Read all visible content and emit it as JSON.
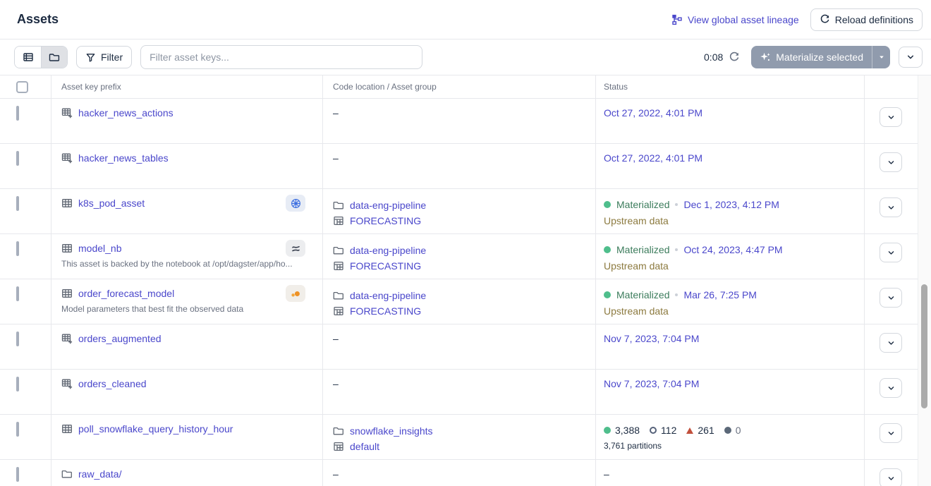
{
  "page": {
    "title": "Assets"
  },
  "header": {
    "lineage_link": "View global asset lineage",
    "reload_button": "Reload definitions"
  },
  "toolbar": {
    "filter_button": "Filter",
    "search_placeholder": "Filter asset keys...",
    "timer": "0:08",
    "materialize_button": "Materialize selected"
  },
  "table": {
    "columns": [
      "Asset key prefix",
      "Code location / Asset group",
      "Status"
    ],
    "empty_cell": "–",
    "rows": [
      {
        "key": "hacker_news_actions",
        "icon": "table-plus",
        "badge": null,
        "description": null,
        "location": null,
        "status": {
          "type": "date",
          "date": "Oct 27, 2022, 4:01 PM"
        }
      },
      {
        "key": "hacker_news_tables",
        "icon": "table-plus",
        "badge": null,
        "description": null,
        "location": null,
        "status": {
          "type": "date",
          "date": "Oct 27, 2022, 4:01 PM"
        }
      },
      {
        "key": "k8s_pod_asset",
        "icon": "table",
        "badge": "kubernetes",
        "description": null,
        "location": {
          "code_location": "data-eng-pipeline",
          "group": "FORECASTING"
        },
        "status": {
          "type": "materialized",
          "label": "Materialized",
          "date": "Dec 1, 2023, 4:12 PM",
          "note": "Upstream data"
        }
      },
      {
        "key": "model_nb",
        "icon": "table",
        "badge": "notebook",
        "description": "This asset is backed by the notebook at /opt/dagster/app/ho...",
        "location": {
          "code_location": "data-eng-pipeline",
          "group": "FORECASTING"
        },
        "status": {
          "type": "materialized",
          "label": "Materialized",
          "date": "Oct 24, 2023, 4:47 PM",
          "note": "Upstream data"
        }
      },
      {
        "key": "order_forecast_model",
        "icon": "table",
        "badge": "noteable",
        "description": "Model parameters that best fit the observed data",
        "location": {
          "code_location": "data-eng-pipeline",
          "group": "FORECASTING"
        },
        "status": {
          "type": "materialized",
          "label": "Materialized",
          "date": "Mar 26, 7:25 PM",
          "note": "Upstream data"
        }
      },
      {
        "key": "orders_augmented",
        "icon": "table-plus",
        "badge": null,
        "description": null,
        "location": null,
        "status": {
          "type": "date",
          "date": "Nov 7, 2023, 7:04 PM"
        }
      },
      {
        "key": "orders_cleaned",
        "icon": "table-plus",
        "badge": null,
        "description": null,
        "location": null,
        "status": {
          "type": "date",
          "date": "Nov 7, 2023, 7:04 PM"
        }
      },
      {
        "key": "poll_snowflake_query_history_hour",
        "icon": "table",
        "badge": null,
        "description": null,
        "location": {
          "code_location": "snowflake_insights",
          "group": "default"
        },
        "status": {
          "type": "partitions",
          "counts": [
            {
              "marker": "materialized",
              "value": "3,388",
              "muted": false
            },
            {
              "marker": "missing",
              "value": "112",
              "muted": false
            },
            {
              "marker": "failed",
              "value": "261",
              "muted": false
            },
            {
              "marker": "materializing",
              "value": "0",
              "muted": true
            }
          ],
          "total": "3,761 partitions"
        }
      },
      {
        "key": "raw_data/",
        "icon": "folder",
        "badge": null,
        "description": null,
        "location": null,
        "status": {
          "type": "none"
        }
      }
    ]
  },
  "colors": {
    "link": "#4a47cb",
    "materialized_green": "#3c7c5c",
    "upstream_olive": "#8c7a3f",
    "failed_red": "#c1503c",
    "kubernetes_blue": "#3d6fe0",
    "noteable_orange": "#ee9226",
    "materialize_button_gray": "#909bad"
  }
}
